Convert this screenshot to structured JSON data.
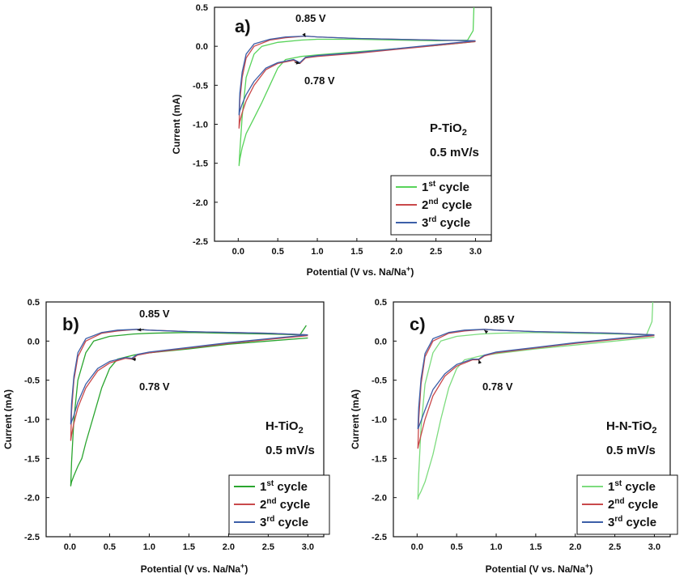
{
  "chart_data": [
    {
      "type": "line",
      "panel_label": "a)",
      "sample": "P-TiO",
      "sample_sub": "2",
      "rate": "0.5 mV/s",
      "xlabel": "Potential (V vs. Na/Na",
      "xlabel_sup": "+",
      "xlabel_end": ")",
      "ylabel": "Current (mA)",
      "xlim": [
        -0.3,
        3.2
      ],
      "ylim": [
        -2.5,
        0.5
      ],
      "xticks": [
        "0.0",
        "0.5",
        "1.0",
        "1.5",
        "2.0",
        "2.5",
        "3.0"
      ],
      "yticks": [
        "0.5",
        "0.0",
        "-0.5",
        "-1.0",
        "-1.5",
        "-2.0",
        "-2.5"
      ],
      "annotations": [
        {
          "text": "0.85 V",
          "x": 0.85,
          "y": 0.12
        },
        {
          "text": "0.78 V",
          "x": 0.78,
          "y": -0.22
        }
      ],
      "series": [
        {
          "name": "1",
          "sup": "st",
          "suffix": " cycle",
          "color": "#58d35a",
          "x": [
            3.0,
            2.8,
            2.5,
            2.0,
            1.5,
            1.0,
            0.8,
            0.6,
            0.5,
            0.4,
            0.3,
            0.2,
            0.1,
            0.05,
            0.02,
            0.01,
            0.02,
            0.05,
            0.1,
            0.2,
            0.3,
            0.5,
            0.8,
            1.0,
            1.5,
            2.0,
            2.5,
            2.9,
            2.97,
            2.98
          ],
          "y": [
            0.06,
            0.04,
            0.01,
            -0.03,
            -0.07,
            -0.11,
            -0.13,
            -0.17,
            -0.28,
            -0.5,
            -0.72,
            -0.92,
            -1.12,
            -1.3,
            -1.45,
            -1.53,
            -1.35,
            -0.9,
            -0.4,
            -0.1,
            0.0,
            0.05,
            0.08,
            0.09,
            0.09,
            0.08,
            0.07,
            0.08,
            0.2,
            0.5
          ]
        },
        {
          "name": "2",
          "sup": "nd",
          "suffix": " cycle",
          "color": "#c9494b",
          "x": [
            3.0,
            2.5,
            2.0,
            1.5,
            1.0,
            0.85,
            0.78,
            0.7,
            0.5,
            0.35,
            0.2,
            0.1,
            0.05,
            0.02,
            0.01,
            0.02,
            0.05,
            0.1,
            0.2,
            0.4,
            0.6,
            0.85,
            1.0,
            1.5,
            2.0,
            2.5,
            3.0
          ],
          "y": [
            0.06,
            0.01,
            -0.04,
            -0.09,
            -0.13,
            -0.15,
            -0.22,
            -0.18,
            -0.22,
            -0.3,
            -0.5,
            -0.7,
            -0.85,
            -0.97,
            -1.05,
            -0.7,
            -0.4,
            -0.15,
            0.0,
            0.08,
            0.11,
            0.13,
            0.12,
            0.1,
            0.09,
            0.08,
            0.07
          ]
        },
        {
          "name": "3",
          "sup": "rd",
          "suffix": " cycle",
          "color": "#3c5fa8",
          "x": [
            3.0,
            2.5,
            2.0,
            1.5,
            1.0,
            0.85,
            0.78,
            0.7,
            0.5,
            0.35,
            0.2,
            0.1,
            0.05,
            0.02,
            0.01,
            0.02,
            0.05,
            0.1,
            0.2,
            0.4,
            0.6,
            0.85,
            1.0,
            1.5,
            2.0,
            2.5,
            3.0
          ],
          "y": [
            0.07,
            0.02,
            -0.03,
            -0.08,
            -0.12,
            -0.14,
            -0.21,
            -0.17,
            -0.21,
            -0.28,
            -0.45,
            -0.62,
            -0.74,
            -0.83,
            -0.88,
            -0.6,
            -0.33,
            -0.1,
            0.03,
            0.09,
            0.12,
            0.13,
            0.12,
            0.1,
            0.09,
            0.08,
            0.07
          ]
        }
      ]
    },
    {
      "type": "line",
      "panel_label": "b)",
      "sample": "H-TiO",
      "sample_sub": "2",
      "rate": "0.5 mV/s",
      "xlabel": "Potential (V vs. Na/Na",
      "xlabel_sup": "+",
      "xlabel_end": ")",
      "ylabel": "Current (mA)",
      "xlim": [
        -0.3,
        3.2
      ],
      "ylim": [
        -2.5,
        0.5
      ],
      "xticks": [
        "0.0",
        "0.5",
        "1.0",
        "1.5",
        "2.0",
        "2.5",
        "3.0"
      ],
      "yticks": [
        "0.5",
        "0.0",
        "-0.5",
        "-1.0",
        "-1.5",
        "-2.0",
        "-2.5"
      ],
      "annotations": [
        {
          "text": "0.85 V",
          "x": 0.85,
          "y": 0.14
        },
        {
          "text": "0.78 V",
          "x": 0.78,
          "y": -0.23
        }
      ],
      "series": [
        {
          "name": "1",
          "sup": "st",
          "suffix": " cycle",
          "color": "#2aa52f",
          "x": [
            3.0,
            2.5,
            2.0,
            1.5,
            1.0,
            0.8,
            0.6,
            0.5,
            0.4,
            0.3,
            0.2,
            0.15,
            0.1,
            0.05,
            0.02,
            0.01,
            0.02,
            0.05,
            0.1,
            0.2,
            0.3,
            0.5,
            0.8,
            1.0,
            1.5,
            2.0,
            2.5,
            2.9,
            2.98
          ],
          "y": [
            0.04,
            0.0,
            -0.04,
            -0.1,
            -0.15,
            -0.18,
            -0.23,
            -0.35,
            -0.6,
            -0.95,
            -1.3,
            -1.5,
            -1.6,
            -1.72,
            -1.8,
            -1.85,
            -1.55,
            -1.0,
            -0.5,
            -0.15,
            0.0,
            0.06,
            0.09,
            0.1,
            0.11,
            0.1,
            0.09,
            0.08,
            0.2
          ]
        },
        {
          "name": "2",
          "sup": "nd",
          "suffix": " cycle",
          "color": "#c9494b",
          "x": [
            3.0,
            2.5,
            2.0,
            1.5,
            1.0,
            0.85,
            0.78,
            0.7,
            0.5,
            0.35,
            0.2,
            0.1,
            0.05,
            0.02,
            0.01,
            0.02,
            0.05,
            0.1,
            0.2,
            0.4,
            0.6,
            0.85,
            1.0,
            1.5,
            2.0,
            2.5,
            3.0
          ],
          "y": [
            0.07,
            0.02,
            -0.03,
            -0.09,
            -0.15,
            -0.18,
            -0.23,
            -0.22,
            -0.28,
            -0.38,
            -0.6,
            -0.85,
            -1.05,
            -1.2,
            -1.27,
            -0.9,
            -0.5,
            -0.2,
            0.0,
            0.1,
            0.13,
            0.15,
            0.14,
            0.12,
            0.11,
            0.1,
            0.08
          ]
        },
        {
          "name": "3",
          "sup": "rd",
          "suffix": " cycle",
          "color": "#3c5fa8",
          "x": [
            3.0,
            2.5,
            2.0,
            1.5,
            1.0,
            0.85,
            0.78,
            0.7,
            0.5,
            0.35,
            0.2,
            0.1,
            0.05,
            0.02,
            0.01,
            0.02,
            0.05,
            0.1,
            0.2,
            0.4,
            0.6,
            0.85,
            1.0,
            1.5,
            2.0,
            2.5,
            3.0
          ],
          "y": [
            0.08,
            0.03,
            -0.02,
            -0.08,
            -0.14,
            -0.17,
            -0.22,
            -0.21,
            -0.26,
            -0.35,
            -0.55,
            -0.78,
            -0.95,
            -1.03,
            -1.06,
            -0.8,
            -0.45,
            -0.15,
            0.03,
            0.11,
            0.14,
            0.15,
            0.14,
            0.12,
            0.11,
            0.1,
            0.08
          ]
        }
      ]
    },
    {
      "type": "line",
      "panel_label": "c)",
      "sample": "H-N-TiO",
      "sample_sub": "2",
      "rate": "0.5 mV/s",
      "xlabel": "Potential (V vs. Na/Na",
      "xlabel_sup": "+",
      "xlabel_end": ")",
      "ylabel": "Current (mA)",
      "xlim": [
        -0.3,
        3.2
      ],
      "ylim": [
        -2.5,
        0.5
      ],
      "xticks": [
        "0.0",
        "0.5",
        "1.0",
        "1.5",
        "2.0",
        "2.5",
        "3.0"
      ],
      "yticks": [
        "0.5",
        "0.0",
        "-0.5",
        "-1.0",
        "-1.5",
        "-2.0",
        "-2.5"
      ],
      "annotations": [
        {
          "text": "0.85 V",
          "x": 0.85,
          "y": 0.14
        },
        {
          "text": "0.78 V",
          "x": 0.78,
          "y": -0.24
        }
      ],
      "series": [
        {
          "name": "1",
          "sup": "st",
          "suffix": " cycle",
          "color": "#7ddc7e",
          "x": [
            3.0,
            2.5,
            2.0,
            1.5,
            1.0,
            0.8,
            0.6,
            0.5,
            0.4,
            0.3,
            0.2,
            0.1,
            0.05,
            0.02,
            0.01,
            0.02,
            0.05,
            0.1,
            0.2,
            0.3,
            0.5,
            0.8,
            1.0,
            1.5,
            2.0,
            2.5,
            2.9,
            2.97,
            2.98
          ],
          "y": [
            0.05,
            0.0,
            -0.05,
            -0.1,
            -0.16,
            -0.19,
            -0.24,
            -0.35,
            -0.6,
            -1.0,
            -1.45,
            -1.8,
            -1.92,
            -1.98,
            -2.02,
            -1.7,
            -1.1,
            -0.55,
            -0.15,
            0.0,
            0.06,
            0.09,
            0.1,
            0.11,
            0.1,
            0.09,
            0.08,
            0.25,
            0.5
          ]
        },
        {
          "name": "2",
          "sup": "nd",
          "suffix": " cycle",
          "color": "#c9494b",
          "x": [
            3.0,
            2.5,
            2.0,
            1.5,
            1.0,
            0.85,
            0.78,
            0.7,
            0.5,
            0.35,
            0.2,
            0.1,
            0.05,
            0.02,
            0.01,
            0.02,
            0.05,
            0.1,
            0.2,
            0.4,
            0.6,
            0.85,
            1.0,
            1.5,
            2.0,
            2.5,
            3.0
          ],
          "y": [
            0.07,
            0.02,
            -0.03,
            -0.09,
            -0.15,
            -0.19,
            -0.24,
            -0.24,
            -0.32,
            -0.45,
            -0.7,
            -1.0,
            -1.2,
            -1.32,
            -1.37,
            -1.0,
            -0.55,
            -0.2,
            0.0,
            0.1,
            0.13,
            0.15,
            0.14,
            0.12,
            0.11,
            0.1,
            0.08
          ]
        },
        {
          "name": "3",
          "sup": "rd",
          "suffix": " cycle",
          "color": "#3c5fa8",
          "x": [
            3.0,
            2.5,
            2.0,
            1.5,
            1.0,
            0.85,
            0.78,
            0.7,
            0.5,
            0.35,
            0.2,
            0.1,
            0.05,
            0.02,
            0.01,
            0.02,
            0.05,
            0.1,
            0.2,
            0.4,
            0.6,
            0.85,
            1.0,
            1.5,
            2.0,
            2.5,
            3.0
          ],
          "y": [
            0.08,
            0.03,
            -0.02,
            -0.08,
            -0.14,
            -0.18,
            -0.23,
            -0.23,
            -0.3,
            -0.42,
            -0.62,
            -0.88,
            -1.02,
            -1.1,
            -1.12,
            -0.85,
            -0.48,
            -0.16,
            0.03,
            0.11,
            0.14,
            0.15,
            0.14,
            0.12,
            0.11,
            0.1,
            0.08
          ]
        }
      ]
    }
  ]
}
